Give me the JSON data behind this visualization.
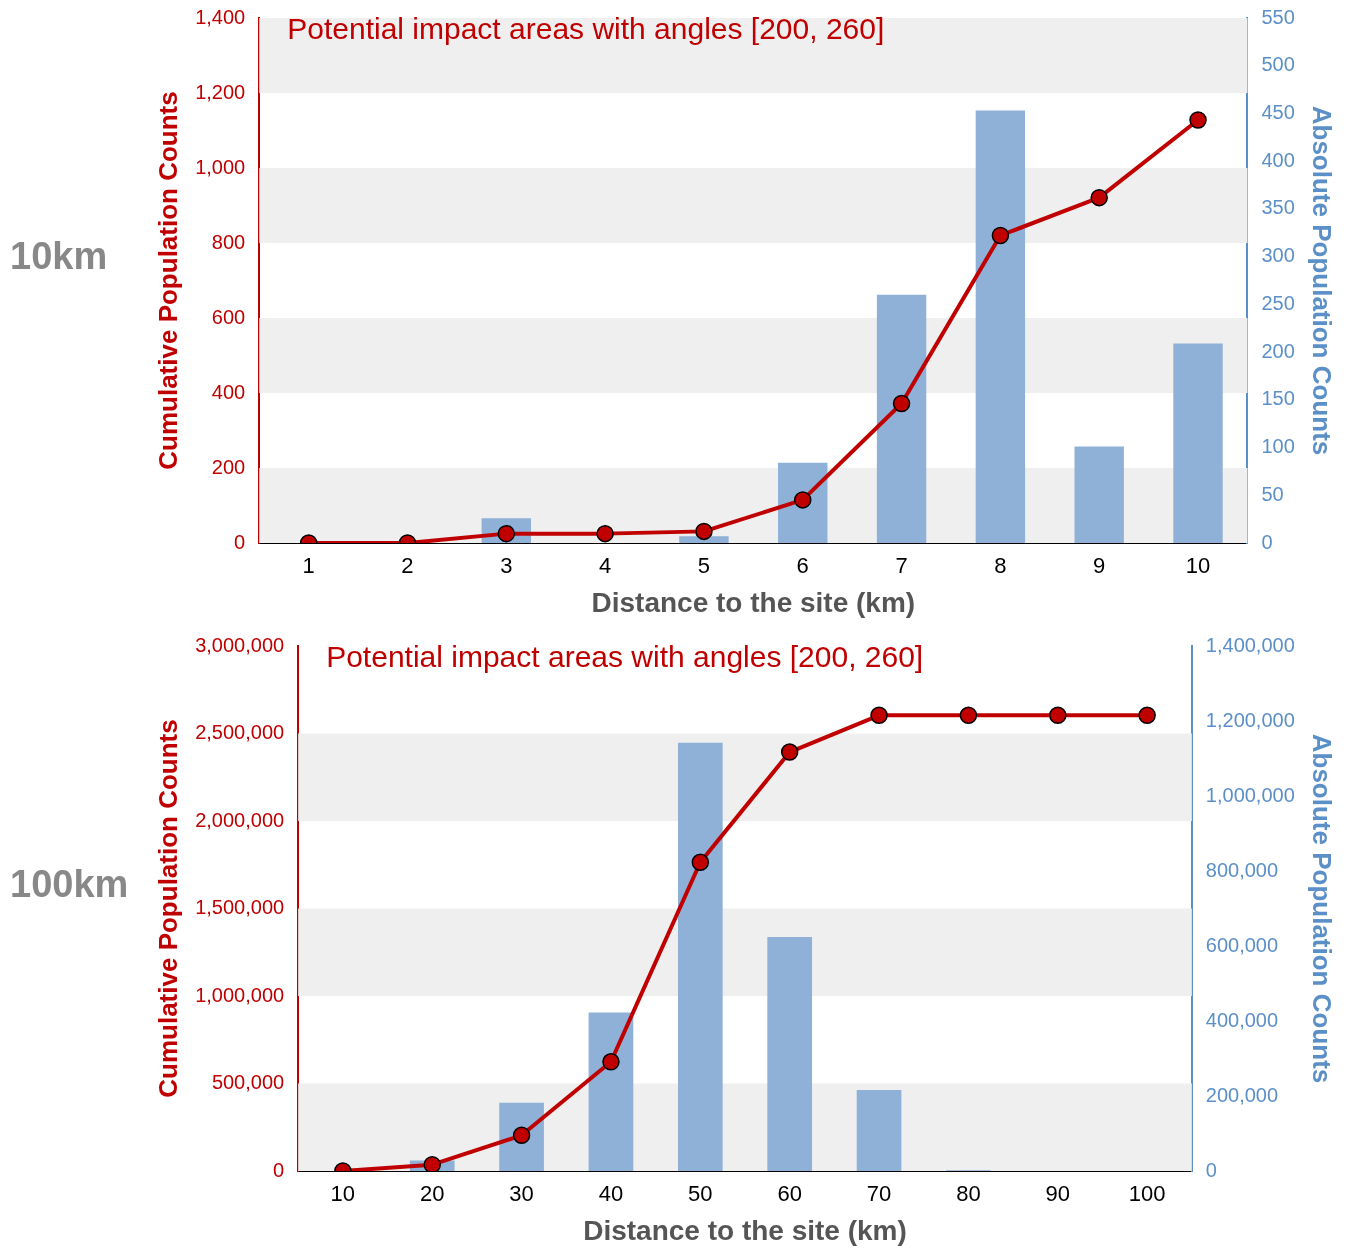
{
  "chart_data": [
    {
      "type": "bar",
      "title": "Potential impact areas with angles [200, 260]",
      "annotations": [
        "10km"
      ],
      "xlabel": "Distance to the site (km)",
      "ylabel": "Cumulative Population Counts",
      "y2label": "Absolute Population Counts",
      "categories": [
        "1",
        "2",
        "3",
        "4",
        "5",
        "6",
        "7",
        "8",
        "9",
        "10"
      ],
      "series": [
        {
          "type": "line",
          "axis": "y",
          "color": "#c00000",
          "values": [
            0,
            0,
            25,
            25,
            31,
            115,
            372,
            820,
            921,
            1128
          ]
        },
        {
          "axis": "y2",
          "color": "#8fb1d8",
          "values": [
            0,
            0,
            26,
            0,
            7,
            84,
            260,
            453,
            101,
            209
          ]
        }
      ],
      "ylim": [
        0,
        1400
      ],
      "yticks": [
        0,
        200,
        400,
        600,
        800,
        {
          "value": 1000,
          "label": "1,000"
        },
        {
          "value": 1200,
          "label": "1,200"
        },
        {
          "value": 1400,
          "label": "1,400"
        }
      ],
      "y2lim": [
        0,
        550
      ],
      "y2ticks": [
        0,
        50,
        100,
        150,
        200,
        250,
        300,
        350,
        400,
        450,
        500,
        550
      ],
      "bands": [
        {
          "axis": "y",
          "from": 0,
          "to": 200,
          "color": "#efefef"
        },
        {
          "axis": "y",
          "from": 400,
          "to": 600,
          "color": "#efefef"
        },
        {
          "axis": "y",
          "from": 800,
          "to": 1000,
          "color": "#efefef"
        },
        {
          "axis": "y",
          "from": 1200,
          "to": 1400,
          "color": "#efefef"
        }
      ],
      "legend": false,
      "marker": "circle",
      "line_style": "solid"
    },
    {
      "type": "bar",
      "title": "Potential impact areas with angles [200, 260]",
      "annotations": [
        "100km"
      ],
      "xlabel": "Distance to the site (km)",
      "ylabel": "Cumulative Population Counts",
      "y2label": "Absolute Population Counts",
      "categories": [
        "10",
        "20",
        "30",
        "40",
        "50",
        "60",
        "70",
        "80",
        "90",
        "100"
      ],
      "series": [
        {
          "type": "line",
          "axis": "y",
          "color": "#c00000",
          "values": [
            0,
            36000,
            204000,
            624000,
            1764000,
            2394000,
            2604000,
            2604000,
            2604000,
            2604000
          ]
        },
        {
          "axis": "y2",
          "color": "#8fb1d8",
          "values": [
            0,
            28000,
            182000,
            423000,
            1142000,
            624000,
            216000,
            2000,
            0,
            0
          ]
        }
      ],
      "ylim": [
        0,
        3000000
      ],
      "yticks": [
        0,
        {
          "value": 500000,
          "label": "500,000"
        },
        {
          "value": 1000000,
          "label": "1,000,000"
        },
        {
          "value": 1500000,
          "label": "1,500,000"
        },
        {
          "value": 2000000,
          "label": "2,000,000"
        },
        {
          "value": 2500000,
          "label": "2,500,000"
        },
        {
          "value": 3000000,
          "label": "3,000,000"
        }
      ],
      "y2lim": [
        0,
        1400000
      ],
      "y2ticks": [
        0,
        {
          "value": 200000,
          "label": "200,000"
        },
        {
          "value": 400000,
          "label": "400,000"
        },
        {
          "value": 600000,
          "label": "600,000"
        },
        {
          "value": 800000,
          "label": "800,000"
        },
        {
          "value": 1000000,
          "label": "1,000,000"
        },
        {
          "value": 1200000,
          "label": "1,200,000"
        },
        {
          "value": 1400000,
          "label": "1,400,000"
        }
      ],
      "bands": [
        {
          "axis": "y",
          "from": 0,
          "to": 500000,
          "color": "#efefef"
        },
        {
          "axis": "y",
          "from": 1000000,
          "to": 1500000,
          "color": "#efefef"
        },
        {
          "axis": "y",
          "from": 2000000,
          "to": 2500000,
          "color": "#efefef"
        }
      ],
      "legend": false,
      "marker": "circle",
      "line_style": "solid"
    }
  ]
}
